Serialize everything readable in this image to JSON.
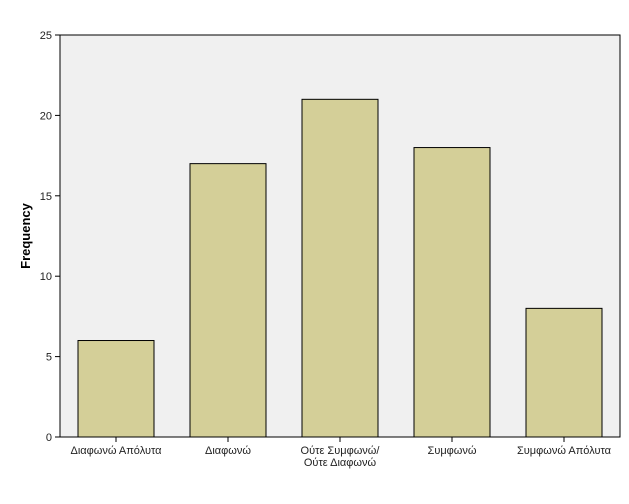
{
  "chart_data": {
    "type": "bar",
    "categories": [
      [
        "Διαφωνώ Απόλυτα"
      ],
      [
        "Διαφωνώ"
      ],
      [
        "Ούτε Συμφωνώ/",
        "Ούτε Διαφωνώ"
      ],
      [
        "Συμφωνώ"
      ],
      [
        "Συμφωνώ Απόλυτα"
      ]
    ],
    "values": [
      6,
      17,
      21,
      18,
      8
    ],
    "ylabel": "Frequency",
    "xlabel": "",
    "ylim": [
      0,
      25
    ],
    "yticks": [
      0,
      5,
      10,
      15,
      20,
      25
    ],
    "grid": false,
    "colors": {
      "bar_fill": "#d4cf98",
      "bar_stroke": "#000000",
      "plot_background": "#f0f0f0",
      "axis": "#000000"
    }
  }
}
